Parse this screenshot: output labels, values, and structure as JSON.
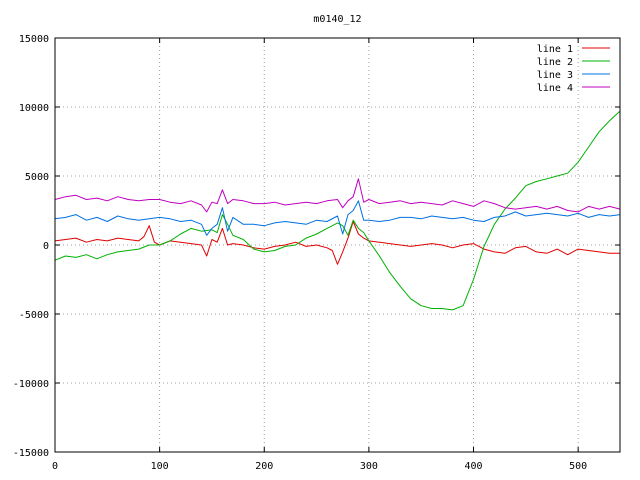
{
  "chart_data": {
    "type": "line",
    "title": "m0140_12",
    "xlabel": "",
    "ylabel": "",
    "xlim": [
      0,
      540
    ],
    "ylim": [
      -15000,
      15000
    ],
    "x_ticks": [
      0,
      100,
      200,
      300,
      400,
      500
    ],
    "y_ticks": [
      -15000,
      -10000,
      -5000,
      0,
      5000,
      10000,
      15000
    ],
    "grid": true,
    "legend_position": "top-right",
    "series": [
      {
        "name": "line 1",
        "color": "#e00000",
        "x": [
          0,
          10,
          20,
          30,
          40,
          50,
          60,
          70,
          80,
          85,
          90,
          95,
          100,
          110,
          120,
          130,
          140,
          145,
          150,
          155,
          160,
          165,
          170,
          180,
          190,
          200,
          210,
          220,
          230,
          240,
          250,
          260,
          265,
          270,
          275,
          280,
          285,
          290,
          295,
          300,
          310,
          320,
          330,
          340,
          350,
          360,
          370,
          380,
          390,
          400,
          410,
          420,
          430,
          440,
          450,
          460,
          470,
          480,
          490,
          500,
          510,
          520,
          530,
          540
        ],
        "y": [
          300,
          400,
          500,
          200,
          400,
          300,
          500,
          400,
          300,
          600,
          1400,
          200,
          0,
          300,
          200,
          100,
          0,
          -800,
          400,
          200,
          1200,
          0,
          100,
          0,
          -200,
          -300,
          -100,
          0,
          200,
          -100,
          0,
          -200,
          -400,
          -1400,
          -500,
          500,
          1700,
          800,
          500,
          300,
          200,
          100,
          0,
          -100,
          0,
          100,
          0,
          -200,
          0,
          100,
          -300,
          -500,
          -600,
          -200,
          -100,
          -500,
          -600,
          -300,
          -700,
          -300,
          -400,
          -500,
          -600,
          -600
        ]
      },
      {
        "name": "line 2",
        "color": "#00b000",
        "x": [
          0,
          10,
          20,
          30,
          40,
          50,
          60,
          70,
          80,
          90,
          100,
          110,
          120,
          130,
          140,
          150,
          155,
          160,
          165,
          170,
          180,
          190,
          200,
          210,
          220,
          230,
          240,
          250,
          260,
          270,
          275,
          280,
          285,
          290,
          295,
          300,
          310,
          320,
          330,
          340,
          350,
          360,
          370,
          380,
          390,
          400,
          410,
          420,
          430,
          440,
          450,
          460,
          470,
          480,
          490,
          500,
          510,
          520,
          530,
          540
        ],
        "y": [
          -1100,
          -800,
          -900,
          -700,
          -1000,
          -700,
          -500,
          -400,
          -300,
          0,
          0,
          300,
          800,
          1200,
          1000,
          1100,
          900,
          2200,
          1500,
          700,
          400,
          -300,
          -500,
          -400,
          -100,
          0,
          500,
          800,
          1200,
          1600,
          1400,
          700,
          1800,
          1200,
          900,
          300,
          -800,
          -2000,
          -3000,
          -3900,
          -4400,
          -4600,
          -4600,
          -4700,
          -4400,
          -2500,
          -100,
          1500,
          2600,
          3400,
          4300,
          4600,
          4800,
          5000,
          5200,
          6000,
          7100,
          8200,
          9000,
          9700
        ]
      },
      {
        "name": "line 3",
        "color": "#0070e0",
        "x": [
          0,
          10,
          20,
          30,
          40,
          50,
          60,
          70,
          80,
          90,
          100,
          110,
          120,
          130,
          140,
          145,
          150,
          155,
          160,
          165,
          170,
          180,
          190,
          200,
          210,
          220,
          230,
          240,
          250,
          260,
          270,
          275,
          280,
          285,
          290,
          295,
          300,
          310,
          320,
          330,
          340,
          350,
          360,
          370,
          380,
          390,
          400,
          410,
          420,
          430,
          440,
          450,
          460,
          470,
          480,
          490,
          500,
          510,
          520,
          530,
          540
        ],
        "y": [
          1900,
          2000,
          2200,
          1800,
          2000,
          1700,
          2100,
          1900,
          1800,
          1900,
          2000,
          1900,
          1700,
          1800,
          1500,
          700,
          1200,
          1500,
          2700,
          1000,
          2000,
          1500,
          1500,
          1400,
          1600,
          1700,
          1600,
          1500,
          1800,
          1700,
          2100,
          800,
          2200,
          2500,
          3200,
          1800,
          1800,
          1700,
          1800,
          2000,
          2000,
          1900,
          2100,
          2000,
          1900,
          2000,
          1800,
          1700,
          2000,
          2100,
          2400,
          2100,
          2200,
          2300,
          2200,
          2100,
          2300,
          2000,
          2200,
          2100,
          2200
        ]
      },
      {
        "name": "line 4",
        "color": "#c000c0",
        "x": [
          0,
          10,
          20,
          30,
          40,
          50,
          60,
          70,
          80,
          90,
          100,
          110,
          120,
          130,
          140,
          145,
          150,
          155,
          160,
          165,
          170,
          180,
          190,
          200,
          210,
          220,
          230,
          240,
          250,
          260,
          270,
          275,
          280,
          285,
          290,
          295,
          300,
          310,
          320,
          330,
          340,
          350,
          360,
          370,
          380,
          390,
          400,
          410,
          420,
          430,
          440,
          450,
          460,
          470,
          480,
          490,
          500,
          510,
          520,
          530,
          540
        ],
        "y": [
          3300,
          3500,
          3600,
          3300,
          3400,
          3200,
          3500,
          3300,
          3200,
          3300,
          3300,
          3100,
          3000,
          3200,
          2900,
          2400,
          3100,
          3000,
          4000,
          3000,
          3300,
          3200,
          3000,
          3000,
          3100,
          2900,
          3000,
          3100,
          3000,
          3200,
          3300,
          2700,
          3200,
          3500,
          4800,
          3100,
          3300,
          3000,
          3100,
          3200,
          3000,
          3100,
          3000,
          2900,
          3200,
          3000,
          2800,
          3200,
          3000,
          2700,
          2600,
          2700,
          2800,
          2600,
          2800,
          2500,
          2400,
          2800,
          2600,
          2800,
          2600
        ]
      }
    ]
  }
}
